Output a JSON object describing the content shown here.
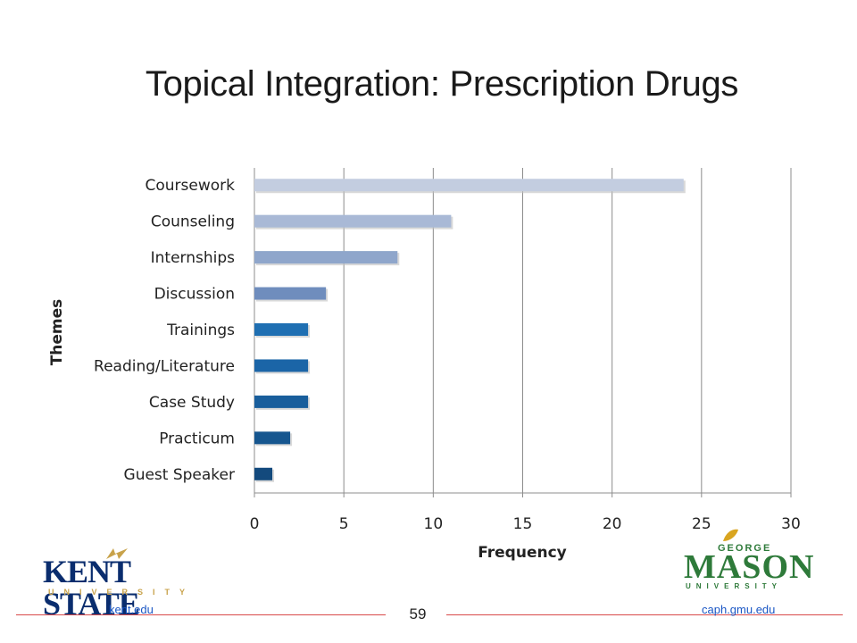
{
  "slide": {
    "title": "Topical Integration: Prescription Drugs",
    "page_number": "59"
  },
  "footer": {
    "left_link": "kent.edu",
    "right_link": "caph.gmu.edu"
  },
  "logos": {
    "left": {
      "name": "kent-state-university-logo",
      "text": "KENT STATE",
      "subtext": "UNIVERSITY"
    },
    "right": {
      "name": "george-mason-university-logo",
      "top_text": "GEORGE",
      "text": "MASON",
      "subtext": "UNIVERSITY"
    }
  },
  "chart_data": {
    "type": "bar",
    "orientation": "horizontal",
    "categories": [
      "Coursework",
      "Counseling",
      "Internships",
      "Discussion",
      "Trainings",
      "Reading/Literature",
      "Case Study",
      "Practicum",
      "Guest Speaker"
    ],
    "values": [
      24,
      11,
      8,
      4,
      3,
      3,
      3,
      2,
      1
    ],
    "bar_colors": [
      "#c3cde0",
      "#a9b9d6",
      "#8fa6cb",
      "#6f8dbd",
      "#1f6fb2",
      "#1b65a7",
      "#195e9c",
      "#16568f",
      "#134a7d"
    ],
    "xlabel": "Frequency",
    "ylabel": "Themes",
    "xlim": [
      0,
      30
    ],
    "xticks": [
      0,
      5,
      10,
      15,
      20,
      25,
      30
    ],
    "grid": "vertical"
  }
}
